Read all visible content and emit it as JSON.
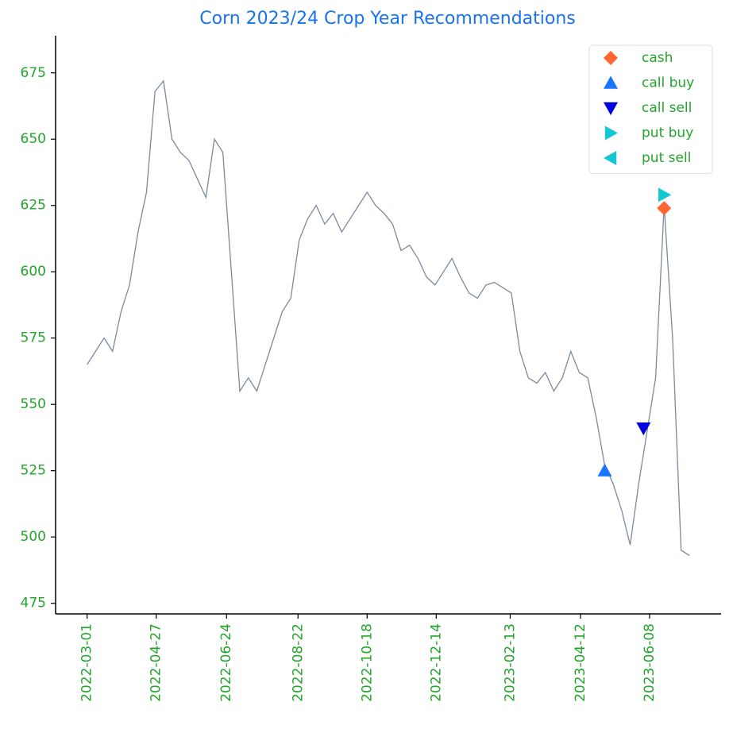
{
  "chart_data": {
    "type": "line",
    "title": "Corn 2023/24 Crop Year Recommendations",
    "xlim": [
      "2022-02-03",
      "2023-08-06"
    ],
    "xticks": [
      "2022-03-01",
      "2022-04-27",
      "2022-06-24",
      "2022-08-22",
      "2022-10-18",
      "2022-12-14",
      "2023-02-13",
      "2023-04-12",
      "2023-06-08"
    ],
    "ylim": [
      471,
      689
    ],
    "yticks": [
      475,
      500,
      525,
      550,
      575,
      600,
      625,
      650,
      675
    ],
    "legend": "upper right",
    "series": [
      {
        "color": "#7b8a9c",
        "marker": "line",
        "x": [
          "2022-03-01",
          "2022-03-08",
          "2022-03-15",
          "2022-03-22",
          "2022-03-29",
          "2022-04-05",
          "2022-04-12",
          "2022-04-19",
          "2022-04-26",
          "2022-05-03",
          "2022-05-10",
          "2022-05-17",
          "2022-05-24",
          "2022-05-31",
          "2022-06-07",
          "2022-06-14",
          "2022-06-21",
          "2022-06-28",
          "2022-07-05",
          "2022-07-12",
          "2022-07-19",
          "2022-07-26",
          "2022-08-02",
          "2022-08-09",
          "2022-08-16",
          "2022-08-23",
          "2022-08-30",
          "2022-09-06",
          "2022-09-13",
          "2022-09-20",
          "2022-09-27",
          "2022-10-04",
          "2022-10-11",
          "2022-10-18",
          "2022-10-25",
          "2022-11-01",
          "2022-11-08",
          "2022-11-15",
          "2022-11-22",
          "2022-11-29",
          "2022-12-06",
          "2022-12-13",
          "2022-12-20",
          "2022-12-27",
          "2023-01-03",
          "2023-01-10",
          "2023-01-17",
          "2023-01-24",
          "2023-01-31",
          "2023-02-07",
          "2023-02-14",
          "2023-02-21",
          "2023-02-28",
          "2023-03-07",
          "2023-03-14",
          "2023-03-21",
          "2023-03-28",
          "2023-04-04",
          "2023-04-11",
          "2023-04-18",
          "2023-04-25",
          "2023-05-02",
          "2023-05-09",
          "2023-05-16",
          "2023-05-23",
          "2023-05-30",
          "2023-06-06",
          "2023-06-13",
          "2023-06-20",
          "2023-06-27",
          "2023-07-04",
          "2023-07-11"
        ],
        "values": [
          565,
          570,
          575,
          570,
          585,
          595,
          615,
          630,
          668,
          672,
          650,
          645,
          642,
          635,
          628,
          650,
          645,
          600,
          555,
          560,
          555,
          565,
          575,
          585,
          590,
          612,
          620,
          625,
          618,
          622,
          615,
          620,
          625,
          630,
          625,
          622,
          618,
          608,
          610,
          605,
          598,
          595,
          600,
          605,
          598,
          592,
          590,
          595,
          596,
          594,
          592,
          570,
          560,
          558,
          562,
          555,
          560,
          570,
          562,
          560,
          545,
          527,
          520,
          510,
          497,
          520,
          540,
          560,
          625,
          575,
          495,
          493
        ]
      },
      {
        "name": "cash",
        "color": "#ff6633",
        "marker": "D",
        "x": [
          "2023-06-20"
        ],
        "values": [
          624
        ]
      },
      {
        "name": "call buy",
        "color": "#1a75ff",
        "marker": "^",
        "x": [
          "2023-05-02"
        ],
        "values": [
          525
        ]
      },
      {
        "name": "call sell",
        "color": "#0000e0",
        "marker": "v",
        "x": [
          "2023-06-03"
        ],
        "values": [
          541
        ]
      },
      {
        "name": "put buy",
        "color": "#14c8d2",
        "marker": ">",
        "x": [
          "2023-06-20"
        ],
        "values": [
          629
        ]
      },
      {
        "name": "put sell",
        "color": "#14c8d2",
        "marker": "<",
        "x": [],
        "values": []
      }
    ]
  }
}
